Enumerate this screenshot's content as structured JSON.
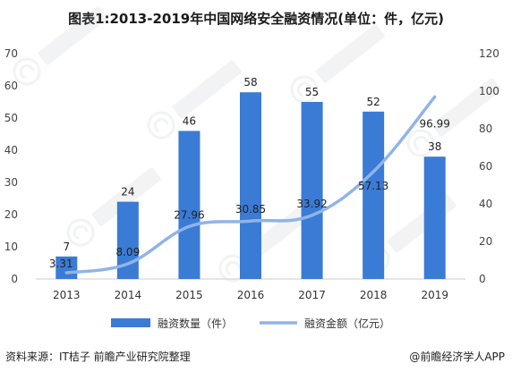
{
  "chart_data": {
    "type": "bar+line",
    "title": "图表1:2013-2019年中国网络安全融资情况(单位：件，亿元)",
    "categories": [
      "2013",
      "2014",
      "2015",
      "2016",
      "2017",
      "2018",
      "2019"
    ],
    "series": [
      {
        "name": "融资数量（件）",
        "type": "bar",
        "axis": "left",
        "values": [
          7,
          24,
          46,
          58,
          55,
          52,
          38
        ],
        "color": "#3a7bd5"
      },
      {
        "name": "融资金额（亿元）",
        "type": "line",
        "axis": "right",
        "values": [
          3.31,
          8.09,
          27.96,
          30.85,
          33.92,
          57.13,
          96.99
        ],
        "color": "#8fb4e8"
      }
    ],
    "y_left": {
      "ylim": [
        0,
        70
      ],
      "ticks": [
        0,
        10,
        20,
        30,
        40,
        50,
        60,
        70
      ]
    },
    "y_right": {
      "ylim": [
        0,
        120
      ],
      "ticks": [
        0,
        20,
        40,
        60,
        80,
        100,
        120
      ]
    },
    "grid": false,
    "legend_position": "bottom"
  },
  "footer": {
    "source": "资料来源：IT桔子 前瞻产业研究院整理",
    "brand": "@前瞻经济学人APP"
  }
}
